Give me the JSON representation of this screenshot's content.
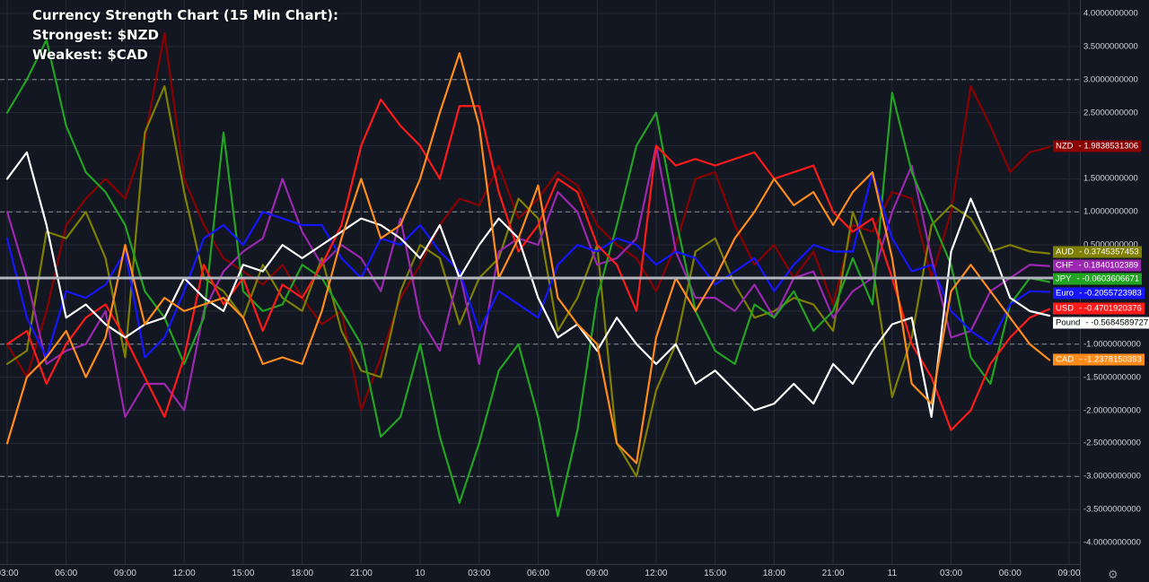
{
  "title": {
    "line1": "Currency Strength Chart (15 Min Chart):",
    "line2": "Strongest: $NZD",
    "line3": "Weakest: $CAD"
  },
  "chart_data": {
    "type": "line",
    "title": "Currency Strength Chart (15 Min Chart):",
    "ylim": [
      -4.3,
      4.3
    ],
    "y_ticks": [
      "4.0000000000",
      "3.5000000000",
      "3.0000000000",
      "2.5000000000",
      "2.0000000000",
      "1.5000000000",
      "1.0000000000",
      "0.5000000000",
      "-0.5000000000",
      "-1.0000000000",
      "-1.5000000000",
      "-2.0000000000",
      "-2.5000000000",
      "-3.0000000000",
      "-3.5000000000",
      "-4.0000000000"
    ],
    "y_tick_values": [
      4,
      3.5,
      3,
      2.5,
      2,
      1.5,
      1,
      0.5,
      -0.5,
      -1,
      -1.5,
      -2,
      -2.5,
      -3,
      -3.5,
      -4
    ],
    "x_ticks": [
      "03:00",
      "06:00",
      "09:00",
      "12:00",
      "15:00",
      "18:00",
      "21:00",
      "10",
      "03:00",
      "06:00",
      "09:00",
      "12:00",
      "15:00",
      "18:00",
      "21:00",
      "11",
      "03:00",
      "06:00",
      "09:00"
    ],
    "x_tick_index": [
      0,
      9,
      18,
      27,
      36,
      45,
      54,
      63,
      72,
      81,
      90,
      99,
      108,
      117,
      126,
      135,
      144,
      153,
      162
    ],
    "dashed_levels": [
      3,
      1,
      -1,
      -3
    ],
    "zero_line": 0,
    "grid": true,
    "x": [
      0,
      3,
      6,
      9,
      12,
      15,
      18,
      21,
      24,
      27,
      30,
      33,
      36,
      39,
      42,
      45,
      48,
      51,
      54,
      57,
      60,
      63,
      66,
      69,
      72,
      75,
      78,
      81,
      84,
      87,
      90,
      93,
      96,
      99,
      102,
      105,
      108,
      111,
      114,
      117,
      120,
      123,
      126,
      129,
      132,
      135,
      138,
      141,
      144,
      147,
      150,
      153,
      156,
      159
    ],
    "series": [
      {
        "name": "NZD",
        "color": "#8b0000",
        "last": "1.9838531306",
        "values": [
          -1.0,
          -1.5,
          -0.5,
          0.8,
          1.2,
          1.5,
          1.2,
          2.1,
          3.7,
          1.5,
          0.8,
          0.3,
          0.1,
          -0.1,
          0.2,
          -0.3,
          -0.7,
          -0.5,
          -2.0,
          -1.2,
          -0.3,
          0.2,
          0.8,
          1.2,
          1.1,
          1.7,
          0.9,
          1.2,
          1.6,
          1.4,
          0.8,
          0.5,
          0.3,
          -0.2,
          0.5,
          1.5,
          1.6,
          0.8,
          0.2,
          0.5,
          0.0,
          0.4,
          -0.4,
          0.8,
          0.7,
          1.3,
          1.2,
          0.0,
          1.0,
          2.9,
          2.3,
          1.6,
          1.9,
          1.98
        ]
      },
      {
        "name": "AUD",
        "color": "#808000",
        "last": "0.3745357453",
        "values": [
          -1.3,
          -1.1,
          0.7,
          0.6,
          1.0,
          0.3,
          -1.2,
          2.2,
          2.9,
          1.3,
          0.0,
          -0.2,
          -0.6,
          0.2,
          -0.3,
          -0.5,
          0.3,
          -0.8,
          -1.4,
          -1.5,
          -0.2,
          0.5,
          0.3,
          -0.7,
          0.0,
          0.3,
          1.2,
          0.9,
          -0.8,
          -0.3,
          0.5,
          -2.5,
          -3.0,
          -1.7,
          -1.0,
          0.4,
          0.6,
          -0.1,
          -0.6,
          -0.5,
          -0.3,
          -0.4,
          -0.8,
          1.0,
          0.2,
          -1.8,
          -0.9,
          0.8,
          1.1,
          0.9,
          0.4,
          0.5,
          0.4,
          0.37
        ]
      },
      {
        "name": "CHF",
        "color": "#9c27b0",
        "last": "0.1840102389",
        "values": [
          1.0,
          0.0,
          -1.3,
          -1.1,
          -1.0,
          -0.5,
          -2.1,
          -1.6,
          -1.6,
          -2.0,
          -0.5,
          0.1,
          0.4,
          0.6,
          1.5,
          0.7,
          0.2,
          0.5,
          0.3,
          -0.2,
          0.9,
          -0.6,
          -1.1,
          0.1,
          -1.3,
          0.4,
          0.6,
          0.5,
          1.3,
          1.0,
          0.2,
          0.3,
          0.6,
          2.0,
          0.4,
          -0.3,
          -0.3,
          -0.5,
          -0.1,
          -0.6,
          0.0,
          0.1,
          -0.6,
          -0.2,
          0.0,
          1.0,
          1.7,
          0.3,
          -0.9,
          -0.8,
          -0.2,
          0.0,
          0.2,
          0.18
        ]
      },
      {
        "name": "JPY",
        "color": "#22a322",
        "last": "-0.0603606671",
        "values": [
          2.5,
          3.0,
          3.6,
          2.3,
          1.6,
          1.3,
          0.8,
          -0.2,
          -0.6,
          -1.3,
          -0.6,
          2.2,
          -0.2,
          -0.5,
          -0.4,
          0.2,
          0.0,
          -0.5,
          -1.0,
          -2.4,
          -2.1,
          -1.0,
          -2.4,
          -3.4,
          -2.5,
          -1.4,
          -1.0,
          -2.1,
          -3.6,
          -2.3,
          -0.3,
          0.8,
          2.0,
          2.5,
          0.9,
          -0.5,
          -1.1,
          -1.3,
          -0.4,
          -0.6,
          -0.2,
          -0.8,
          -0.5,
          0.3,
          -0.4,
          2.8,
          1.6,
          0.9,
          0.2,
          -1.2,
          -1.6,
          -0.4,
          0.0,
          -0.06
        ]
      },
      {
        "name": "Euro",
        "color": "#1515ff",
        "last": "-0.2055723983",
        "values": [
          0.6,
          -0.6,
          -1.2,
          -0.2,
          -0.3,
          -0.1,
          0.4,
          -1.2,
          -0.9,
          -0.2,
          0.6,
          0.8,
          0.5,
          1.0,
          0.9,
          0.8,
          0.8,
          0.3,
          0.0,
          0.6,
          0.5,
          0.8,
          0.4,
          0.1,
          -0.8,
          -0.2,
          -0.4,
          -0.6,
          0.2,
          0.5,
          0.4,
          0.6,
          0.5,
          0.2,
          0.4,
          0.3,
          -0.1,
          0.1,
          0.3,
          -0.2,
          0.2,
          0.5,
          0.4,
          0.4,
          1.6,
          0.6,
          0.1,
          0.2,
          -0.5,
          -0.8,
          -1.0,
          -0.4,
          -0.2,
          -0.21
        ]
      },
      {
        "name": "USD",
        "color": "#ff1a1a",
        "last": "-0.4701920376",
        "values": [
          -1.0,
          -0.8,
          -1.6,
          -1.0,
          -0.6,
          -0.4,
          -0.9,
          -1.5,
          -2.1,
          -1.2,
          0.2,
          -0.4,
          0.0,
          -0.8,
          -0.1,
          -0.3,
          0.2,
          0.8,
          2.0,
          2.7,
          2.3,
          2.0,
          1.5,
          2.6,
          2.6,
          1.3,
          0.4,
          0.8,
          1.5,
          1.3,
          0.5,
          0.2,
          -0.5,
          2.0,
          1.7,
          1.8,
          1.7,
          1.8,
          1.9,
          1.5,
          1.6,
          1.7,
          1.0,
          0.7,
          0.9,
          0.0,
          -1.0,
          -1.5,
          -2.3,
          -2.0,
          -1.3,
          -0.9,
          -0.6,
          -0.47
        ]
      },
      {
        "name": "Pound",
        "color": "#ffffff",
        "last": "-0.5684589727",
        "values": [
          1.5,
          1.9,
          0.8,
          -0.6,
          -0.4,
          -0.7,
          -0.9,
          -0.7,
          -0.6,
          0.0,
          -0.3,
          -0.5,
          0.2,
          0.1,
          0.5,
          0.3,
          0.5,
          0.7,
          0.9,
          0.8,
          0.6,
          0.3,
          0.8,
          0.0,
          0.5,
          0.9,
          0.6,
          -0.3,
          -0.9,
          -0.7,
          -1.1,
          -0.6,
          -1.0,
          -1.3,
          -1.0,
          -1.6,
          -1.4,
          -1.7,
          -2.0,
          -1.9,
          -1.6,
          -1.9,
          -1.3,
          -1.6,
          -1.1,
          -0.7,
          -0.6,
          -2.1,
          0.4,
          1.2,
          0.5,
          -0.3,
          -0.5,
          -0.57
        ]
      },
      {
        "name": "CAD",
        "color": "#ff8c1a",
        "last": "-1.2378150393",
        "values": [
          -2.5,
          -1.5,
          -1.2,
          -0.8,
          -1.5,
          -0.9,
          0.5,
          -0.7,
          -0.3,
          -0.5,
          -0.4,
          -0.3,
          -0.6,
          -1.3,
          -1.2,
          -1.3,
          -0.5,
          0.6,
          1.5,
          0.6,
          0.8,
          1.5,
          2.5,
          3.4,
          2.3,
          0.0,
          0.6,
          1.4,
          -0.3,
          -0.7,
          -1.0,
          -2.5,
          -2.8,
          -0.9,
          0.0,
          -0.5,
          0.0,
          0.6,
          1.0,
          1.5,
          1.1,
          1.3,
          0.8,
          1.3,
          1.6,
          0.3,
          -1.6,
          -1.9,
          -0.2,
          0.2,
          -0.2,
          -0.6,
          -1.0,
          -1.24
        ]
      }
    ]
  },
  "labels_order": [
    "NZD",
    "AUD",
    "CHF",
    "JPY",
    "Euro",
    "USD",
    "Pound",
    "CAD"
  ],
  "gear_icon": "gear-icon"
}
